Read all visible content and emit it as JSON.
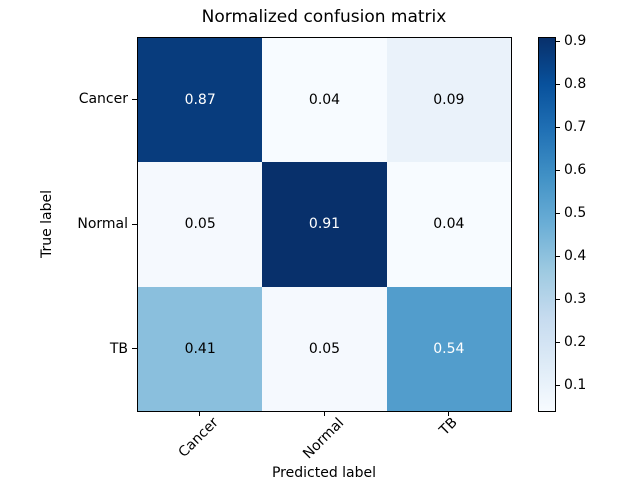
{
  "chart_data": {
    "type": "heatmap",
    "title": "Normalized confusion matrix",
    "xlabel": "Predicted label",
    "ylabel": "True label",
    "x_categories": [
      "Cancer",
      "Normal",
      "TB"
    ],
    "y_categories": [
      "Cancer",
      "Normal",
      "TB"
    ],
    "matrix": [
      [
        0.87,
        0.04,
        0.09
      ],
      [
        0.05,
        0.91,
        0.04
      ],
      [
        0.41,
        0.05,
        0.54
      ]
    ],
    "cell_labels": [
      [
        "0.87",
        "0.04",
        "0.09"
      ],
      [
        "0.05",
        "0.91",
        "0.04"
      ],
      [
        "0.41",
        "0.05",
        "0.54"
      ]
    ],
    "cell_colors": [
      [
        "#083c7d",
        "#f7fbff",
        "#eaf2fa"
      ],
      [
        "#f5f9fe",
        "#08306b",
        "#f7fbff"
      ],
      [
        "#8abfdd",
        "#f5f9fe",
        "#529dcc"
      ]
    ],
    "cell_text_colors": [
      [
        "#ffffff",
        "#000000",
        "#000000"
      ],
      [
        "#000000",
        "#ffffff",
        "#000000"
      ],
      [
        "#000000",
        "#000000",
        "#ffffff"
      ]
    ],
    "colormap": "Blues",
    "grid": false,
    "colorbar": {
      "position": "right",
      "vmin": 0.04,
      "vmax": 0.91,
      "ticks": [
        0.9,
        0.8,
        0.7,
        0.6,
        0.5,
        0.4,
        0.3,
        0.2,
        0.1
      ],
      "tick_labels": [
        "0.9",
        "0.8",
        "0.7",
        "0.6",
        "0.5",
        "0.4",
        "0.3",
        "0.2",
        "0.1"
      ],
      "gradient": [
        "#08306b",
        "#08519c",
        "#2171b5",
        "#4292c6",
        "#6baed6",
        "#9ecae1",
        "#c6dbef",
        "#deebf7",
        "#f7fbff"
      ]
    },
    "axis_color": "#000000"
  }
}
